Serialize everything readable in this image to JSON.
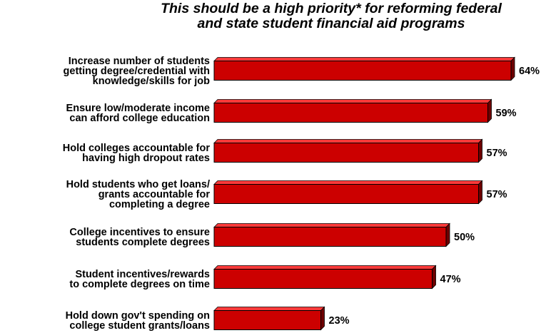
{
  "chart_data": {
    "type": "bar",
    "orientation": "horizontal",
    "title": [
      "This should be a high priority* for reforming federal",
      "and state student financial aid programs"
    ],
    "categories": [
      [
        "Increase number of students",
        "getting degree/credential with",
        "knowledge/skills for job"
      ],
      [
        "Ensure low/moderate income",
        "can afford college education"
      ],
      [
        "Hold colleges accountable for",
        "having high dropout rates"
      ],
      [
        "Hold students who get loans/",
        "grants accountable for",
        "completing a degree"
      ],
      [
        "College incentives to ensure",
        "students complete degrees"
      ],
      [
        "Student incentives/rewards",
        "to complete degrees on time"
      ],
      [
        "Hold down gov't spending on",
        "college student grants/loans"
      ]
    ],
    "values": [
      64,
      59,
      57,
      57,
      50,
      47,
      23
    ],
    "value_labels": [
      "64%",
      "59%",
      "57%",
      "57%",
      "50%",
      "47%",
      "23%"
    ],
    "xlim": [
      0,
      100
    ],
    "grid": false,
    "legend": "none",
    "colors": {
      "bar": "#cc0000",
      "bar_top": "#ff3a3a",
      "bar_side": "#6e0000",
      "bar_edge": "#000000"
    }
  }
}
